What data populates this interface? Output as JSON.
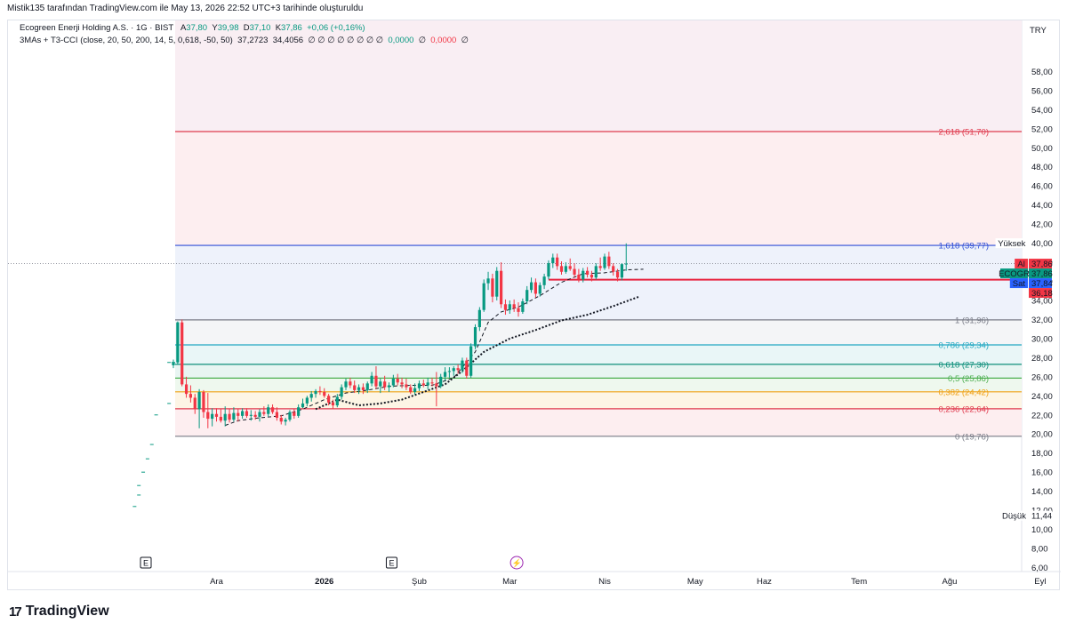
{
  "header": {
    "attribution": "Mistik135 tarafından TradingView.com ile May 13, 2026 22:52 UTC+3 tarihinde oluşturuldu"
  },
  "legend": {
    "symbol": "Ecogreen Enerji Holding A.S. · 1G · BIST",
    "open_label": "A",
    "open": "37,80",
    "high_label": "Y",
    "high": "39,98",
    "low_label": "D",
    "low": "37,10",
    "close_label": "K",
    "close": "37,86",
    "change": "+0,06 (+0,16%)",
    "indicator": "3MAs + T3-CCI (close, 20, 50, 200, 14, 5, 0,618, -50, 50)",
    "ind_v1": "37,2723",
    "ind_v2": "34,4056",
    "ind_nulls": "∅ ∅ ∅ ∅ ∅ ∅ ∅ ∅",
    "ind_v3": "0,0000",
    "ind_null2": "∅",
    "ind_v4": "0,0000",
    "ind_null3": "∅"
  },
  "footer": {
    "brand": "TradingView",
    "logo_mark": "17"
  },
  "colors": {
    "up": "#089981",
    "down": "#f23645",
    "grid": "#f0f3fa"
  },
  "chart_data": {
    "type": "candlestick",
    "currency": "TRY",
    "y_range": [
      6,
      59.5
    ],
    "y_ticks": [
      "58,00",
      "56,00",
      "54,00",
      "52,00",
      "50,00",
      "48,00",
      "46,00",
      "44,00",
      "42,00",
      "40,00",
      "38,00",
      "36,00",
      "34,00",
      "32,00",
      "30,00",
      "28,00",
      "26,00",
      "24,00",
      "22,00",
      "20,00",
      "18,00",
      "16,00",
      "14,00",
      "12,00",
      "10,00",
      "8,00",
      "6,00"
    ],
    "y_tick_values": [
      58,
      56,
      54,
      52,
      50,
      48,
      46,
      44,
      42,
      40,
      38,
      36,
      34,
      32,
      30,
      28,
      26,
      24,
      22,
      20,
      18,
      16,
      14,
      12,
      10,
      8,
      6
    ],
    "x_ticks": [
      "Ara",
      "2026",
      "Şub",
      "Mar",
      "Nis",
      "May",
      "Haz",
      "Tem",
      "Ağu",
      "Eyl"
    ],
    "x_tick_bold": [
      false,
      true,
      false,
      false,
      false,
      false,
      false,
      false,
      false,
      false
    ],
    "x_tick_index": [
      10,
      35,
      57,
      78,
      100,
      121,
      137,
      159,
      180,
      201
    ],
    "n_bars": 120,
    "candles": [
      [
        27.2,
        27.8,
        26.9,
        27.5
      ],
      [
        27.5,
        31.8,
        27.3,
        31.7
      ],
      [
        31.7,
        32.0,
        25.0,
        25.2
      ],
      [
        25.2,
        26.0,
        23.8,
        24.2
      ],
      [
        24.2,
        25.1,
        23.3,
        23.8
      ],
      [
        23.8,
        24.2,
        22.1,
        22.6
      ],
      [
        22.6,
        24.7,
        20.6,
        24.4
      ],
      [
        24.4,
        24.6,
        21.7,
        22.3
      ],
      [
        22.3,
        24.3,
        20.6,
        21.6
      ],
      [
        21.6,
        22.7,
        20.8,
        22.1
      ],
      [
        22.1,
        22.7,
        21.3,
        21.8
      ],
      [
        21.8,
        22.6,
        21.2,
        21.4
      ],
      [
        21.4,
        22.9,
        20.8,
        22.1
      ],
      [
        22.1,
        22.6,
        21.2,
        21.5
      ],
      [
        21.5,
        22.8,
        21.3,
        22.2
      ],
      [
        22.2,
        22.6,
        21.3,
        21.9
      ],
      [
        21.9,
        22.7,
        21.6,
        22.4
      ],
      [
        22.4,
        22.7,
        21.7,
        21.9
      ],
      [
        21.9,
        22.5,
        21.4,
        22.0
      ],
      [
        22.0,
        22.4,
        21.5,
        21.8
      ],
      [
        21.8,
        22.6,
        21.3,
        22.3
      ],
      [
        22.3,
        22.9,
        21.9,
        22.1
      ],
      [
        22.1,
        23.1,
        21.8,
        22.8
      ],
      [
        22.8,
        23.1,
        22.1,
        22.3
      ],
      [
        22.3,
        22.8,
        21.4,
        21.7
      ],
      [
        21.7,
        22.0,
        21.0,
        21.3
      ],
      [
        21.3,
        21.7,
        20.9,
        21.5
      ],
      [
        21.5,
        22.5,
        21.3,
        22.3
      ],
      [
        22.3,
        22.6,
        21.6,
        21.9
      ],
      [
        21.9,
        23.1,
        21.7,
        22.8
      ],
      [
        22.8,
        23.7,
        22.7,
        23.2
      ],
      [
        23.2,
        24.0,
        22.9,
        23.8
      ],
      [
        23.8,
        24.5,
        23.4,
        24.2
      ],
      [
        24.2,
        24.7,
        23.8,
        24.5
      ],
      [
        24.5,
        25.0,
        24.1,
        24.4
      ],
      [
        24.4,
        24.8,
        23.8,
        24.0
      ],
      [
        24.0,
        24.2,
        23.0,
        23.3
      ],
      [
        23.3,
        23.6,
        22.6,
        23.0
      ],
      [
        23.0,
        24.2,
        22.8,
        23.9
      ],
      [
        23.9,
        25.2,
        23.6,
        24.9
      ],
      [
        24.9,
        25.8,
        24.6,
        25.5
      ],
      [
        25.5,
        25.9,
        24.8,
        25.1
      ],
      [
        25.1,
        25.6,
        24.3,
        24.6
      ],
      [
        24.6,
        25.2,
        24.2,
        24.9
      ],
      [
        24.9,
        25.3,
        24.2,
        24.6
      ],
      [
        24.6,
        25.5,
        24.3,
        25.3
      ],
      [
        25.3,
        26.5,
        25.0,
        26.1
      ],
      [
        26.1,
        27.1,
        24.7,
        25.0
      ],
      [
        25.0,
        25.8,
        24.3,
        25.5
      ],
      [
        25.5,
        26.1,
        24.6,
        24.9
      ],
      [
        24.9,
        25.4,
        24.4,
        25.1
      ],
      [
        25.1,
        26.2,
        24.9,
        25.8
      ],
      [
        25.8,
        26.3,
        25.1,
        25.4
      ],
      [
        25.4,
        25.9,
        24.8,
        25.2
      ],
      [
        25.2,
        25.8,
        24.6,
        24.9
      ],
      [
        24.9,
        25.2,
        24.2,
        24.4
      ],
      [
        24.4,
        25.3,
        24.1,
        24.8
      ],
      [
        24.8,
        25.6,
        24.5,
        25.3
      ],
      [
        25.3,
        25.7,
        24.9,
        25.1
      ],
      [
        25.1,
        25.9,
        24.7,
        25.4
      ],
      [
        25.4,
        25.9,
        25.0,
        25.3
      ],
      [
        25.3,
        26.5,
        22.9,
        25.0
      ],
      [
        25.0,
        26.3,
        24.8,
        26.0
      ],
      [
        26.0,
        27.0,
        25.6,
        26.5
      ],
      [
        26.5,
        27.0,
        25.9,
        26.6
      ],
      [
        26.6,
        27.1,
        26.1,
        26.9
      ],
      [
        26.9,
        27.3,
        26.3,
        26.7
      ],
      [
        26.7,
        28.0,
        26.4,
        27.7
      ],
      [
        27.7,
        28.0,
        25.8,
        26.1
      ],
      [
        26.1,
        29.5,
        25.9,
        29.2
      ],
      [
        29.2,
        31.5,
        28.9,
        31.2
      ],
      [
        31.2,
        33.3,
        30.8,
        33.0
      ],
      [
        33.0,
        36.2,
        32.8,
        35.8
      ],
      [
        35.8,
        37.0,
        35.1,
        36.3
      ],
      [
        36.3,
        36.8,
        33.8,
        34.4
      ],
      [
        34.4,
        37.5,
        34.0,
        37.1
      ],
      [
        37.1,
        38.0,
        33.2,
        33.6
      ],
      [
        33.6,
        34.1,
        32.5,
        33.0
      ],
      [
        33.0,
        34.0,
        32.6,
        33.6
      ],
      [
        33.6,
        34.1,
        32.8,
        33.2
      ],
      [
        33.2,
        33.8,
        32.3,
        32.8
      ],
      [
        32.8,
        34.2,
        32.6,
        33.9
      ],
      [
        33.9,
        35.5,
        33.6,
        35.1
      ],
      [
        35.1,
        36.4,
        34.8,
        35.9
      ],
      [
        35.9,
        36.3,
        34.3,
        34.7
      ],
      [
        34.7,
        35.9,
        34.4,
        35.6
      ],
      [
        35.6,
        36.8,
        35.2,
        36.5
      ],
      [
        36.5,
        38.2,
        36.2,
        37.9
      ],
      [
        37.9,
        38.9,
        37.4,
        38.5
      ],
      [
        38.5,
        38.9,
        37.2,
        37.6
      ],
      [
        37.6,
        38.1,
        36.7,
        37.0
      ],
      [
        37.0,
        38.0,
        36.8,
        37.6
      ],
      [
        37.6,
        38.4,
        37.1,
        37.3
      ],
      [
        37.3,
        37.9,
        36.4,
        36.7
      ],
      [
        36.7,
        37.3,
        35.9,
        36.2
      ],
      [
        36.2,
        37.4,
        35.9,
        37.1
      ],
      [
        37.1,
        37.5,
        36.4,
        36.7
      ],
      [
        36.7,
        37.1,
        36.0,
        36.4
      ],
      [
        36.4,
        37.9,
        36.2,
        37.6
      ],
      [
        37.6,
        38.5,
        37.1,
        37.4
      ],
      [
        37.4,
        38.9,
        37.2,
        38.6
      ],
      [
        38.6,
        39.1,
        37.3,
        37.6
      ],
      [
        37.6,
        37.9,
        36.6,
        37.0
      ],
      [
        37.0,
        37.3,
        36.0,
        36.4
      ],
      [
        36.4,
        37.9,
        36.1,
        37.8
      ],
      [
        37.8,
        39.98,
        37.1,
        37.86
      ]
    ],
    "ma_fast": [
      [
        12,
        20.9
      ],
      [
        15,
        21.4
      ],
      [
        20,
        21.7
      ],
      [
        25,
        21.9
      ],
      [
        30,
        22.6
      ],
      [
        35,
        23.6
      ],
      [
        40,
        24.3
      ],
      [
        45,
        24.6
      ],
      [
        50,
        25.0
      ],
      [
        55,
        25.1
      ],
      [
        60,
        25.1
      ],
      [
        65,
        25.9
      ],
      [
        70,
        28.6
      ],
      [
        73,
        31.7
      ],
      [
        76,
        32.8
      ],
      [
        80,
        33.3
      ],
      [
        85,
        34.5
      ],
      [
        90,
        35.9
      ],
      [
        95,
        36.8
      ],
      [
        100,
        36.9
      ],
      [
        105,
        37.2
      ],
      [
        109,
        37.27
      ]
    ],
    "ma_slow": [
      [
        33,
        22.6
      ],
      [
        38,
        23.6
      ],
      [
        43,
        23.0
      ],
      [
        48,
        23.2
      ],
      [
        53,
        23.6
      ],
      [
        58,
        24.4
      ],
      [
        63,
        25.2
      ],
      [
        67,
        26.6
      ],
      [
        72,
        28.6
      ],
      [
        78,
        30.0
      ],
      [
        84,
        30.9
      ],
      [
        90,
        31.9
      ],
      [
        96,
        32.5
      ],
      [
        102,
        33.4
      ],
      [
        108,
        34.4
      ]
    ],
    "fib_levels": [
      {
        "label": "2,618 (51,70)",
        "value": 51.7,
        "color": "#e03b4e"
      },
      {
        "label": "1,618 (39,77)",
        "value": 39.77,
        "color": "#2f4ed6"
      },
      {
        "label": "1 (31,96)",
        "value": 31.96,
        "color": "#787b86"
      },
      {
        "label": "0,786 (29,34)",
        "value": 29.34,
        "color": "#22a8c2"
      },
      {
        "label": "0,618 (27,30)",
        "value": 27.3,
        "color": "#0f8f7c"
      },
      {
        "label": "0,5 (25,86)",
        "value": 25.86,
        "color": "#4caf50"
      },
      {
        "label": "0,382 (24,42)",
        "value": 24.42,
        "color": "#f0a012"
      },
      {
        "label": "0,236 (22,64)",
        "value": 22.64,
        "color": "#e03b4e"
      },
      {
        "label": "0 (19,76)",
        "value": 19.76,
        "color": "#787b86"
      }
    ],
    "support_line": 36.18,
    "price_labels": [
      {
        "text": "Yüksek",
        "value": "40,00",
        "kind": "plain",
        "price": 40.0
      },
      {
        "text": "Al",
        "value": "37,86",
        "kind": "red",
        "price": 37.86
      },
      {
        "text": "ECOGR",
        "value": "37,86",
        "kind": "green",
        "price": 37.86
      },
      {
        "text": "Sat",
        "value": "37,84",
        "kind": "blue",
        "price": 37.84
      },
      {
        "text": "",
        "value": "36,18",
        "kind": "redfill",
        "price": 36.18
      },
      {
        "text": "Düşük",
        "value": "11,44",
        "kind": "plain",
        "price": 11.44
      }
    ],
    "events": [
      {
        "symbol": "E",
        "index": 0
      },
      {
        "symbol": "E",
        "index": 57
      },
      {
        "symbol": "⚡",
        "index": 86
      }
    ]
  }
}
